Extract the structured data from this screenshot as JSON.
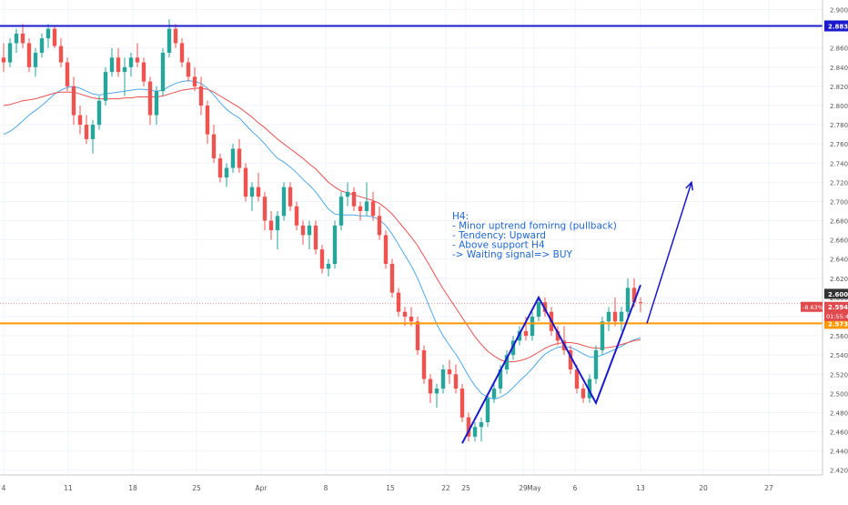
{
  "chart_data": {
    "type": "candlestick",
    "timeframe": "H4",
    "x_tick_labels": [
      "4",
      "11",
      "18",
      "25",
      "Apr",
      "8",
      "15",
      "22",
      "25",
      "29",
      "May",
      "6",
      "13",
      "20",
      "27"
    ],
    "y_tick_labels": [
      "2.900",
      "2.880",
      "2.860",
      "2.840",
      "2.820",
      "2.800",
      "2.780",
      "2.760",
      "2.740",
      "2.720",
      "2.700",
      "2.680",
      "2.660",
      "2.640",
      "2.620",
      "2.600",
      "2.580",
      "2.560",
      "2.540",
      "2.520",
      "2.500",
      "2.480",
      "2.460",
      "2.440",
      "2.420"
    ],
    "ylim": [
      2.415,
      2.91
    ],
    "grid": true,
    "series": [
      {
        "type": "ohlc",
        "candles": [
          [
            2.85,
            2.865,
            2.835,
            2.845
          ],
          [
            2.845,
            2.87,
            2.84,
            2.865
          ],
          [
            2.865,
            2.88,
            2.855,
            2.875
          ],
          [
            2.875,
            2.885,
            2.86,
            2.865
          ],
          [
            2.865,
            2.87,
            2.835,
            2.84
          ],
          [
            2.84,
            2.86,
            2.83,
            2.855
          ],
          [
            2.855,
            2.875,
            2.85,
            2.87
          ],
          [
            2.87,
            2.885,
            2.86,
            2.88
          ],
          [
            2.88,
            2.882,
            2.86,
            2.862
          ],
          [
            2.862,
            2.87,
            2.84,
            2.845
          ],
          [
            2.845,
            2.85,
            2.815,
            2.82
          ],
          [
            2.82,
            2.83,
            2.78,
            2.79
          ],
          [
            2.79,
            2.8,
            2.77,
            2.78
          ],
          [
            2.78,
            2.79,
            2.76,
            2.765
          ],
          [
            2.765,
            2.785,
            2.75,
            2.78
          ],
          [
            2.78,
            2.81,
            2.775,
            2.805
          ],
          [
            2.805,
            2.84,
            2.8,
            2.835
          ],
          [
            2.835,
            2.86,
            2.83,
            2.85
          ],
          [
            2.85,
            2.86,
            2.83,
            2.835
          ],
          [
            2.835,
            2.85,
            2.81,
            2.84
          ],
          [
            2.84,
            2.855,
            2.83,
            2.85
          ],
          [
            2.85,
            2.865,
            2.84,
            2.845
          ],
          [
            2.845,
            2.85,
            2.82,
            2.825
          ],
          [
            2.825,
            2.83,
            2.78,
            2.79
          ],
          [
            2.79,
            2.82,
            2.78,
            2.815
          ],
          [
            2.815,
            2.86,
            2.81,
            2.855
          ],
          [
            2.855,
            2.89,
            2.85,
            2.88
          ],
          [
            2.88,
            2.885,
            2.86,
            2.865
          ],
          [
            2.865,
            2.87,
            2.84,
            2.845
          ],
          [
            2.845,
            2.85,
            2.825,
            2.83
          ],
          [
            2.83,
            2.84,
            2.815,
            2.82
          ],
          [
            2.82,
            2.83,
            2.79,
            2.8
          ],
          [
            2.8,
            2.805,
            2.76,
            2.77
          ],
          [
            2.77,
            2.78,
            2.74,
            2.745
          ],
          [
            2.745,
            2.75,
            2.72,
            2.725
          ],
          [
            2.725,
            2.74,
            2.715,
            2.735
          ],
          [
            2.735,
            2.76,
            2.73,
            2.755
          ],
          [
            2.755,
            2.765,
            2.73,
            2.735
          ],
          [
            2.735,
            2.74,
            2.7,
            2.705
          ],
          [
            2.705,
            2.72,
            2.69,
            2.715
          ],
          [
            2.715,
            2.73,
            2.7,
            2.705
          ],
          [
            2.705,
            2.71,
            2.67,
            2.68
          ],
          [
            2.68,
            2.69,
            2.66,
            2.67
          ],
          [
            2.67,
            2.69,
            2.65,
            2.685
          ],
          [
            2.685,
            2.72,
            2.68,
            2.715
          ],
          [
            2.715,
            2.72,
            2.69,
            2.695
          ],
          [
            2.695,
            2.7,
            2.67,
            2.675
          ],
          [
            2.675,
            2.68,
            2.655,
            2.665
          ],
          [
            2.665,
            2.68,
            2.65,
            2.675
          ],
          [
            2.675,
            2.68,
            2.645,
            2.65
          ],
          [
            2.65,
            2.655,
            2.625,
            2.63
          ],
          [
            2.63,
            2.64,
            2.622,
            2.635
          ],
          [
            2.635,
            2.68,
            2.63,
            2.675
          ],
          [
            2.675,
            2.71,
            2.67,
            2.705
          ],
          [
            2.705,
            2.72,
            2.695,
            2.71
          ],
          [
            2.71,
            2.715,
            2.69,
            2.695
          ],
          [
            2.695,
            2.7,
            2.68,
            2.69
          ],
          [
            2.69,
            2.72,
            2.685,
            2.7
          ],
          [
            2.7,
            2.71,
            2.68,
            2.685
          ],
          [
            2.685,
            2.695,
            2.66,
            2.665
          ],
          [
            2.665,
            2.67,
            2.63,
            2.635
          ],
          [
            2.635,
            2.64,
            2.6,
            2.605
          ],
          [
            2.605,
            2.61,
            2.58,
            2.585
          ],
          [
            2.585,
            2.59,
            2.57,
            2.58
          ],
          [
            2.58,
            2.59,
            2.57,
            2.575
          ],
          [
            2.575,
            2.58,
            2.54,
            2.545
          ],
          [
            2.545,
            2.55,
            2.51,
            2.515
          ],
          [
            2.515,
            2.52,
            2.49,
            2.5
          ],
          [
            2.5,
            2.51,
            2.485,
            2.505
          ],
          [
            2.505,
            2.53,
            2.5,
            2.525
          ],
          [
            2.525,
            2.535,
            2.51,
            2.52
          ],
          [
            2.52,
            2.53,
            2.5,
            2.505
          ],
          [
            2.505,
            2.51,
            2.47,
            2.475
          ],
          [
            2.475,
            2.48,
            2.45,
            2.455
          ],
          [
            2.455,
            2.47,
            2.45,
            2.465
          ],
          [
            2.465,
            2.475,
            2.45,
            2.47
          ],
          [
            2.47,
            2.5,
            2.465,
            2.495
          ],
          [
            2.495,
            2.51,
            2.49,
            2.505
          ],
          [
            2.505,
            2.53,
            2.5,
            2.525
          ],
          [
            2.525,
            2.545,
            2.52,
            2.54
          ],
          [
            2.54,
            2.56,
            2.535,
            2.555
          ],
          [
            2.555,
            2.57,
            2.55,
            2.565
          ],
          [
            2.565,
            2.58,
            2.555,
            2.56
          ],
          [
            2.56,
            2.585,
            2.555,
            2.58
          ],
          [
            2.58,
            2.6,
            2.575,
            2.595
          ],
          [
            2.595,
            2.6,
            2.58,
            2.585
          ],
          [
            2.585,
            2.59,
            2.56,
            2.565
          ],
          [
            2.565,
            2.57,
            2.55,
            2.555
          ],
          [
            2.555,
            2.57,
            2.54,
            2.545
          ],
          [
            2.545,
            2.55,
            2.52,
            2.525
          ],
          [
            2.525,
            2.53,
            2.5,
            2.505
          ],
          [
            2.505,
            2.51,
            2.49,
            2.495
          ],
          [
            2.495,
            2.52,
            2.49,
            2.515
          ],
          [
            2.515,
            2.55,
            2.51,
            2.545
          ],
          [
            2.545,
            2.58,
            2.54,
            2.575
          ],
          [
            2.575,
            2.59,
            2.565,
            2.585
          ],
          [
            2.585,
            2.6,
            2.57,
            2.575
          ],
          [
            2.575,
            2.59,
            2.565,
            2.585
          ],
          [
            2.585,
            2.62,
            2.58,
            2.61
          ],
          [
            2.61,
            2.62,
            2.59,
            2.595
          ],
          [
            2.595,
            2.6,
            2.585,
            2.594
          ]
        ]
      },
      {
        "type": "ma",
        "color": "#4fa8e8",
        "values": [
          2.77,
          2.773,
          2.778,
          2.784,
          2.79,
          2.795,
          2.8,
          2.806,
          2.812,
          2.816,
          2.819,
          2.82,
          2.818,
          2.815,
          2.812,
          2.811,
          2.812,
          2.813,
          2.814,
          2.815,
          2.816,
          2.817,
          2.817,
          2.816,
          2.815,
          2.816,
          2.82,
          2.823,
          2.825,
          2.826,
          2.825,
          2.823,
          2.818,
          2.811,
          2.803,
          2.796,
          2.791,
          2.787,
          2.78,
          2.773,
          2.767,
          2.76,
          2.752,
          2.745,
          2.741,
          2.736,
          2.73,
          2.723,
          2.717,
          2.71,
          2.701,
          2.692,
          2.687,
          2.686,
          2.686,
          2.686,
          2.685,
          2.685,
          2.684,
          2.681,
          2.675,
          2.666,
          2.655,
          2.644,
          2.633,
          2.62,
          2.604,
          2.588,
          2.572,
          2.56,
          2.55,
          2.541,
          2.53,
          2.518,
          2.508,
          2.5,
          2.496,
          2.494,
          2.496,
          2.5,
          2.506,
          2.513,
          2.519,
          2.526,
          2.534,
          2.541,
          2.545,
          2.548,
          2.549,
          2.548,
          2.545,
          2.541,
          2.538,
          2.538,
          2.54,
          2.543,
          2.546,
          2.549,
          2.553,
          2.556,
          2.558
        ]
      },
      {
        "type": "ma",
        "color": "#e85050",
        "values": [
          2.8,
          2.801,
          2.803,
          2.805,
          2.806,
          2.807,
          2.809,
          2.811,
          2.813,
          2.814,
          2.814,
          2.814,
          2.812,
          2.81,
          2.808,
          2.807,
          2.807,
          2.807,
          2.807,
          2.808,
          2.808,
          2.809,
          2.809,
          2.809,
          2.809,
          2.81,
          2.812,
          2.814,
          2.816,
          2.817,
          2.818,
          2.818,
          2.817,
          2.814,
          2.81,
          2.806,
          2.802,
          2.798,
          2.793,
          2.788,
          2.782,
          2.777,
          2.771,
          2.765,
          2.76,
          2.755,
          2.75,
          2.745,
          2.739,
          2.734,
          2.727,
          2.72,
          2.715,
          2.711,
          2.709,
          2.707,
          2.705,
          2.703,
          2.701,
          2.698,
          2.693,
          2.687,
          2.679,
          2.671,
          2.663,
          2.654,
          2.643,
          2.632,
          2.62,
          2.609,
          2.599,
          2.589,
          2.579,
          2.569,
          2.559,
          2.551,
          2.544,
          2.539,
          2.535,
          2.533,
          2.533,
          2.534,
          2.536,
          2.539,
          2.543,
          2.547,
          2.55,
          2.552,
          2.553,
          2.553,
          2.552,
          2.55,
          2.548,
          2.547,
          2.547,
          2.548,
          2.549,
          2.551,
          2.553,
          2.555,
          2.556
        ]
      }
    ],
    "horizontal_lines": [
      {
        "value": 2.883,
        "label": "2.883",
        "color": "#1a1acc"
      },
      {
        "value": 2.573,
        "label": "2.573",
        "color": "#ff9800"
      }
    ],
    "price_tags": [
      {
        "label": "2.600",
        "value": 2.6,
        "color": "#333333"
      },
      {
        "label": "2.594",
        "value": 2.594,
        "color": "#e0494e"
      }
    ],
    "change_badge": "-8.63%",
    "countdown": "01:55:40",
    "pattern_points": [
      [
        72,
        2.448
      ],
      [
        84,
        2.6
      ],
      [
        93,
        2.49
      ],
      [
        100,
        2.613
      ]
    ],
    "forecast_arrow": [
      [
        101,
        2.573
      ],
      [
        108,
        2.72
      ]
    ],
    "annotation": {
      "color": "#1e66d0",
      "lines": [
        "H4:",
        "- Minor uptrend fomirng (pullback)",
        "- Tendency: Upward",
        "- Above support H4",
        "-> Waiting signal=> BUY"
      ]
    }
  }
}
